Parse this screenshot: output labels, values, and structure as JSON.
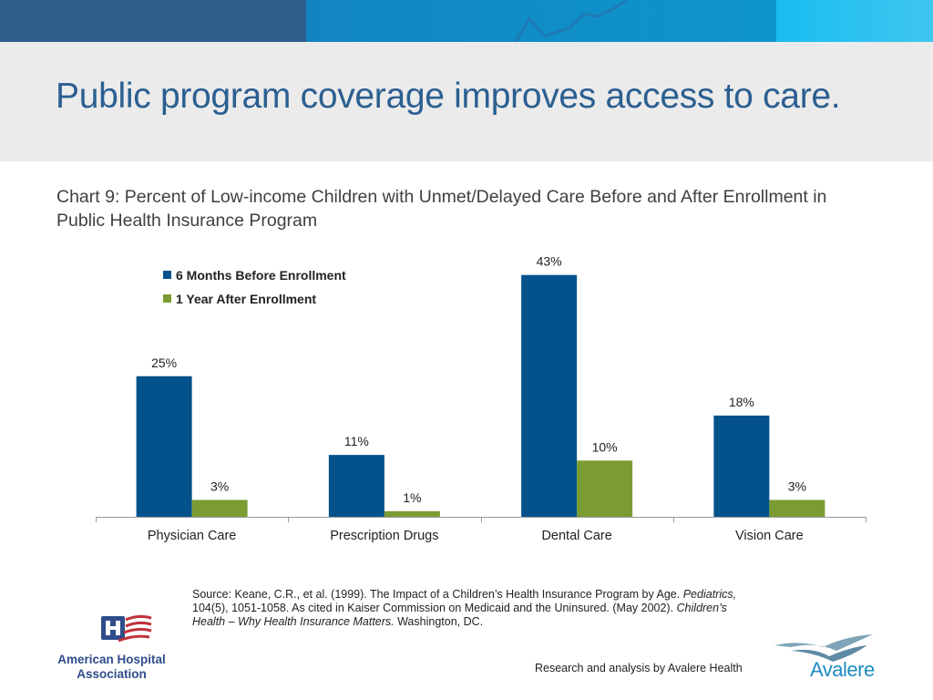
{
  "header": {
    "title": "Public program coverage improves access to care."
  },
  "chart_data": {
    "type": "bar",
    "title": "Chart 9:  Percent of Low-income Children with Unmet/Delayed Care Before and After Enrollment in Public Health Insurance Program",
    "xlabel": "",
    "ylabel": "",
    "ylim": [
      0,
      45
    ],
    "grid": false,
    "legend_position": "top-left",
    "categories": [
      "Physician Care",
      "Prescription Drugs",
      "Dental Care",
      "Vision Care"
    ],
    "series": [
      {
        "name": "6 Months Before Enrollment",
        "color": "#03528c",
        "values": [
          25,
          11,
          43,
          18
        ],
        "labels": [
          "25%",
          "11%",
          "43%",
          "18%"
        ]
      },
      {
        "name": "1 Year After Enrollment",
        "color": "#7a9c33",
        "values": [
          3,
          1,
          10,
          3
        ],
        "labels": [
          "3%",
          "1%",
          "10%",
          "3%"
        ]
      }
    ]
  },
  "source": {
    "part1": "Source: Keane, C.R., et al. (1999). The Impact of a Children’s Health Insurance Program by Age. ",
    "journal": "Pediatrics,",
    "part2": "  104(5), 1051-1058. As cited in Kaiser Commission on Medicaid and the Uninsured. (May 2002). ",
    "report": "Children’s Health – Why Health Insurance Matters.",
    "part3": " Washington, DC."
  },
  "footer": {
    "credit": "Research and analysis by Avalere Health",
    "aha_logo_icon": "american-hospital-association-logo",
    "aha_name": "American Hospital Association",
    "avalere_logo_icon": "avalere-logo",
    "avalere_name": "Avalere"
  }
}
